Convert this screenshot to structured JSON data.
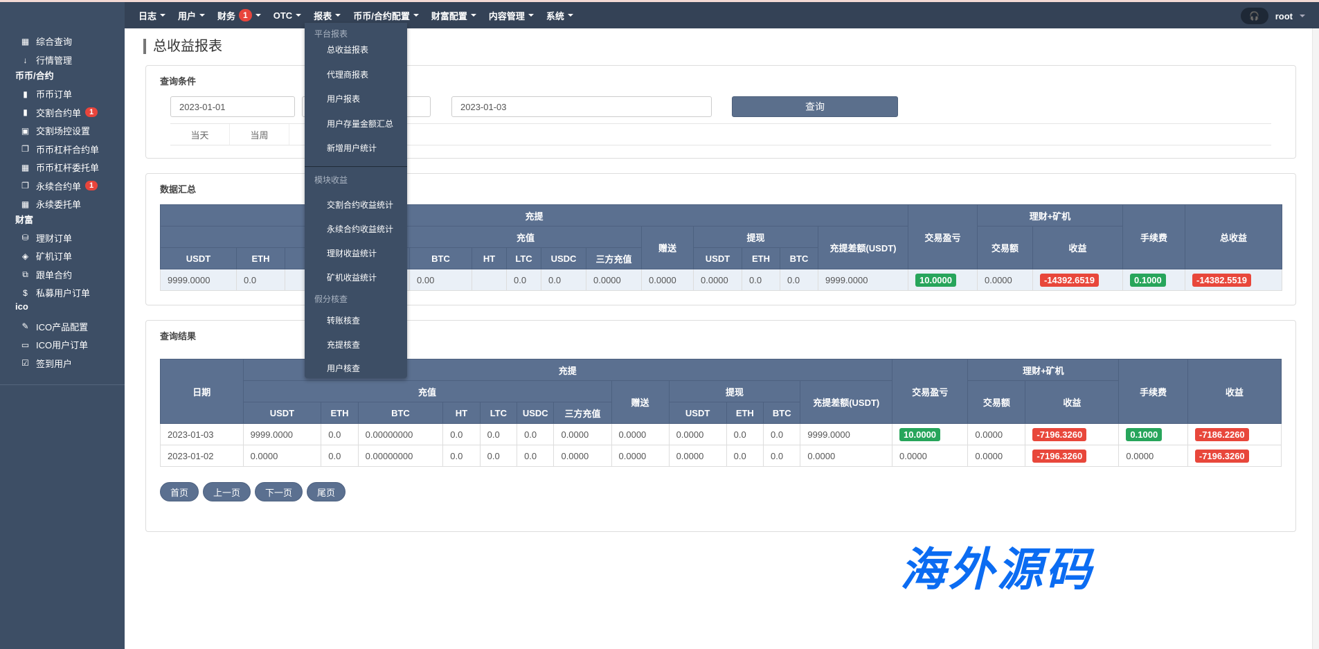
{
  "nav": {
    "items": [
      {
        "label": "日志"
      },
      {
        "label": "用户"
      },
      {
        "label": "财务",
        "badge": "1"
      },
      {
        "label": "OTC"
      },
      {
        "label": "报表"
      },
      {
        "label": "币币/合约配置"
      },
      {
        "label": "财富配置"
      },
      {
        "label": "内容管理"
      },
      {
        "label": "系统"
      }
    ],
    "user": "root"
  },
  "sidebar": {
    "top": [
      {
        "label": "综合查询",
        "icon": "grid-icon"
      },
      {
        "label": "行情管理",
        "icon": "sort-icon"
      }
    ],
    "groups": [
      {
        "label": "币币/合约",
        "items": [
          {
            "label": "币币订单"
          },
          {
            "label": "交割合约单",
            "badge": "1"
          },
          {
            "label": "交割场控设置"
          },
          {
            "label": "币币杠杆合约单"
          },
          {
            "label": "币币杠杆委托单"
          },
          {
            "label": "永续合约单",
            "badge": "1"
          },
          {
            "label": "永续委托单"
          }
        ]
      },
      {
        "label": "财富",
        "items": [
          {
            "label": "理财订单"
          },
          {
            "label": "矿机订单"
          },
          {
            "label": "跟单合约"
          },
          {
            "label": "私募用户订单"
          }
        ]
      },
      {
        "label": "ico",
        "items": [
          {
            "label": "ICO产品配置"
          },
          {
            "label": "ICO用户订单"
          },
          {
            "label": "签到用户"
          }
        ]
      }
    ]
  },
  "dropdown": {
    "sections": [
      {
        "header": "平台报表",
        "items": [
          "总收益报表",
          "代理商报表",
          "用户报表",
          "用户存量金额汇总",
          "新增用户统计"
        ]
      },
      {
        "header": "模块收益",
        "items": [
          "交割合约收益统计",
          "永续合约收益统计",
          "理财收益统计",
          "矿机收益统计"
        ]
      },
      {
        "header": "假分核查",
        "items": [
          "转账核查",
          "充提核查",
          "用户核查"
        ]
      }
    ]
  },
  "page": {
    "title": "总收益报表"
  },
  "query": {
    "title": "查询条件",
    "start": "2023-01-01",
    "middle": "",
    "end": "2023-01-03",
    "button": "查询",
    "tabs": [
      "当天",
      "当周",
      ""
    ]
  },
  "summary": {
    "title": "数据汇总",
    "headers": {
      "chongti": "充提",
      "chongzhi": "充值",
      "zengsong": "赠送",
      "tixian": "提现",
      "diff": "充提差额(USDT)",
      "pnl": "交易盈亏",
      "licai": "理财+矿机",
      "volume": "交易额",
      "income": "收益",
      "fee": "手续费",
      "total": "总收益",
      "coins": [
        "USDT",
        "ETH",
        "BTC",
        "HT",
        "LTC",
        "USDC",
        "三方充值"
      ],
      "wcoins": [
        "USDT",
        "ETH",
        "BTC"
      ]
    },
    "row": [
      "9999.0000",
      "0.0",
      "0.00",
      "",
      "0.0",
      "0.0",
      "0.0000",
      "0.0000",
      "0.0000",
      "0.0",
      "0.0",
      "9999.0000",
      "10.0000",
      "0.0000",
      "-14392.6519",
      "0.1000",
      "-14382.5519"
    ]
  },
  "results": {
    "title": "查询结果",
    "date_header": "日期",
    "total_header": "收益",
    "rows": [
      [
        "2023-01-03",
        "9999.0000",
        "0.0",
        "0.00000000",
        "0.0",
        "0.0",
        "0.0",
        "0.0000",
        "0.0000",
        "0.0000",
        "0.0",
        "0.0",
        "9999.0000",
        "10.0000",
        "0.0000",
        "-7196.3260",
        "0.1000",
        "-7186.2260"
      ],
      [
        "2023-01-02",
        "0.0000",
        "0.0",
        "0.00000000",
        "0.0",
        "0.0",
        "0.0",
        "0.0000",
        "0.0000",
        "0.0000",
        "0.0",
        "0.0",
        "0.0000",
        "0.0000",
        "0.0000",
        "-7196.3260",
        "0.0000",
        "-7196.3260"
      ]
    ]
  },
  "pager": [
    "首页",
    "上一页",
    "下一页",
    "尾页"
  ],
  "watermark": "海外源码",
  "colors": {
    "header": "#5b7090",
    "positive": "#27a55b",
    "negative": "#e8473b",
    "sidebar": "#3d4e65",
    "topbar": "#344256"
  }
}
